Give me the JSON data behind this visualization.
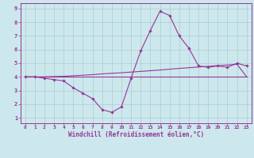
{
  "xlabel": "Windchill (Refroidissement éolien,°C)",
  "background_color": "#cce8ec",
  "grid_color": "#aaccd4",
  "line_color": "#993399",
  "xlim_min": -0.5,
  "xlim_max": 23.5,
  "ylim_min": 0.6,
  "ylim_max": 9.4,
  "xticks": [
    0,
    1,
    2,
    3,
    4,
    5,
    6,
    7,
    8,
    9,
    10,
    11,
    12,
    13,
    14,
    15,
    16,
    17,
    18,
    19,
    20,
    21,
    22,
    23
  ],
  "yticks": [
    1,
    2,
    3,
    4,
    5,
    6,
    7,
    8,
    9
  ],
  "x_hours": [
    0,
    1,
    2,
    3,
    4,
    5,
    6,
    7,
    8,
    9,
    10,
    11,
    12,
    13,
    14,
    15,
    16,
    17,
    18,
    19,
    20,
    21,
    22,
    23
  ],
  "main_line_y": [
    4.0,
    4.0,
    3.9,
    3.8,
    3.7,
    3.2,
    2.8,
    2.4,
    1.6,
    1.4,
    1.8,
    3.9,
    5.9,
    7.4,
    8.8,
    8.5,
    7.0,
    6.1,
    4.8,
    4.7,
    4.8,
    4.7,
    5.0,
    4.8
  ],
  "flat_line_y": [
    4.0,
    4.0,
    4.0,
    4.0,
    4.0,
    4.0,
    4.0,
    4.0,
    4.0,
    4.0,
    4.0,
    4.0,
    4.0,
    4.0,
    4.0,
    4.0,
    4.0,
    4.0,
    4.0,
    4.0,
    4.0,
    4.0,
    4.0,
    4.0
  ],
  "trend_line_y": [
    4.0,
    4.0,
    4.0,
    4.02,
    4.04,
    4.08,
    4.12,
    4.16,
    4.22,
    4.26,
    4.3,
    4.35,
    4.4,
    4.45,
    4.5,
    4.56,
    4.62,
    4.67,
    4.72,
    4.77,
    4.82,
    4.87,
    4.92,
    4.0
  ]
}
